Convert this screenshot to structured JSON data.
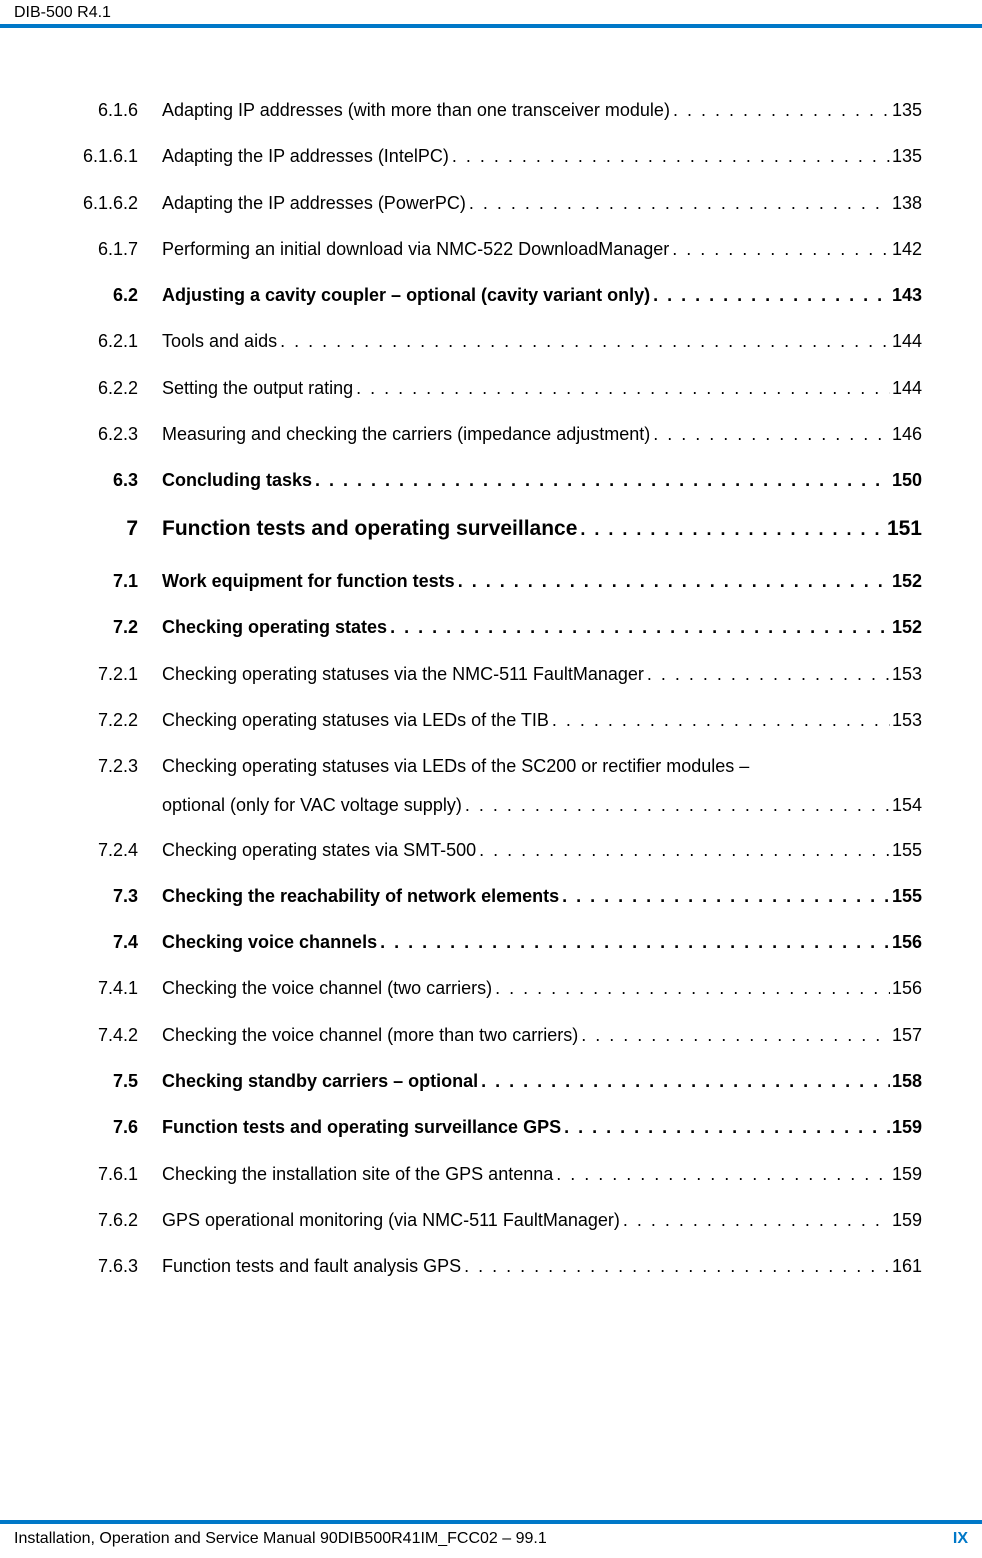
{
  "header": {
    "title": "DIB-500 R4.1"
  },
  "footer": {
    "left": "Installation, Operation and Service Manual 90DIB500R41IM_FCC02 – 99.1",
    "right": "IX"
  },
  "toc": [
    {
      "num": "6.1.6",
      "title": "Adapting IP addresses (with more than one transceiver module)",
      "page": "135",
      "bold": false
    },
    {
      "num": "6.1.6.1",
      "title": "Adapting the IP addresses (IntelPC)",
      "page": "135",
      "bold": false
    },
    {
      "num": "6.1.6.2",
      "title": "Adapting the IP addresses (PowerPC)",
      "page": "138",
      "bold": false
    },
    {
      "num": "6.1.7",
      "title": "Performing an initial download via NMC-522 DownloadManager",
      "page": "142",
      "bold": false
    },
    {
      "num": "6.2",
      "title": "Adjusting a cavity coupler – optional (cavity variant only)",
      "page": "143",
      "bold": true
    },
    {
      "num": "6.2.1",
      "title": "Tools and aids",
      "page": "144",
      "bold": false
    },
    {
      "num": "6.2.2",
      "title": "Setting the output rating",
      "page": "144",
      "bold": false
    },
    {
      "num": "6.2.3",
      "title": "Measuring and checking the carriers (impedance adjustment)",
      "page": "146",
      "bold": false
    },
    {
      "num": "6.3",
      "title": "Concluding tasks",
      "page": "150",
      "bold": true
    },
    {
      "num": "7",
      "title": "Function tests and operating surveillance",
      "page": "151",
      "bold": true,
      "chapter": true
    },
    {
      "num": "7.1",
      "title": "Work equipment for function tests",
      "page": "152",
      "bold": true
    },
    {
      "num": "7.2",
      "title": "Checking operating states",
      "page": "152",
      "bold": true
    },
    {
      "num": "7.2.1",
      "title": "Checking operating statuses via the NMC-511 FaultManager",
      "page": "153",
      "bold": false
    },
    {
      "num": "7.2.2",
      "title": "Checking operating statuses via LEDs of the TIB",
      "page": "153",
      "bold": false
    },
    {
      "num": "7.2.3",
      "title": "Checking operating statuses via LEDs of the SC200 or rectifier modules –",
      "page": "",
      "bold": false,
      "nowrap_page": true
    },
    {
      "num": "",
      "title": "optional (only for VAC voltage supply)",
      "page": "154",
      "bold": false,
      "continuation": true
    },
    {
      "num": "7.2.4",
      "title": "Checking operating states via SMT-500",
      "page": "155",
      "bold": false
    },
    {
      "num": "7.3",
      "title": "Checking the reachability of network elements",
      "page": "155",
      "bold": true
    },
    {
      "num": "7.4",
      "title": "Checking voice channels",
      "page": "156",
      "bold": true
    },
    {
      "num": "7.4.1",
      "title": "Checking the voice channel (two carriers)",
      "page": "156",
      "bold": false
    },
    {
      "num": "7.4.2",
      "title": "Checking the voice channel (more than two carriers)",
      "page": "157",
      "bold": false
    },
    {
      "num": "7.5",
      "title": "Checking standby carriers – optional",
      "page": "158",
      "bold": true
    },
    {
      "num": "7.6",
      "title": "Function tests and operating surveillance GPS",
      "page": "159",
      "bold": true
    },
    {
      "num": "7.6.1",
      "title": "Checking the installation site of the GPS antenna",
      "page": "159",
      "bold": false
    },
    {
      "num": "7.6.2",
      "title": "GPS operational monitoring (via NMC-511 FaultManager)",
      "page": "159",
      "bold": false
    },
    {
      "num": "7.6.3",
      "title": "Function tests and fault analysis GPS",
      "page": "161",
      "bold": false
    }
  ]
}
